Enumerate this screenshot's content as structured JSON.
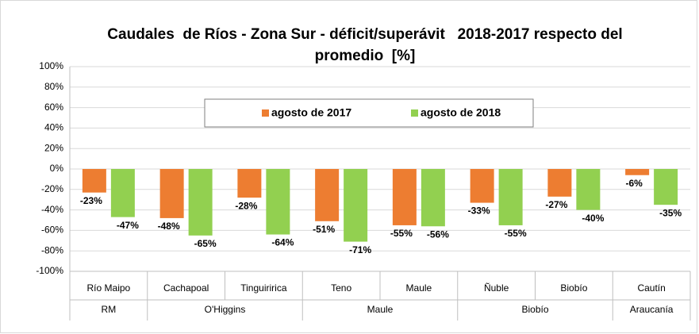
{
  "chart_data": {
    "type": "bar",
    "title": "Caudales  de Ríos - Zona Sur - déficit/superávit   2018-2017 respecto del promedio  [%]",
    "categories": [
      "Río Maipo",
      "Cachapoal",
      "Tinguiririca",
      "Teno",
      "Maule",
      "Ñuble",
      "Biobío",
      "Cautín"
    ],
    "groups": [
      {
        "label": "RM",
        "span": 1
      },
      {
        "label": "O'Higgins",
        "span": 2
      },
      {
        "label": "Maule",
        "span": 2
      },
      {
        "label": "Biobío",
        "span": 2
      },
      {
        "label": "Araucanía",
        "span": 1
      }
    ],
    "series": [
      {
        "name": "agosto de 2017",
        "color": "#ed7d31",
        "values": [
          -23,
          -48,
          -28,
          -51,
          -55,
          -33,
          -27,
          -6
        ],
        "value_labels": [
          "-23%",
          "-48%",
          "-28%",
          "-51%",
          "-55%",
          "-33%",
          "-27%",
          "-6%"
        ]
      },
      {
        "name": "agosto de 2018",
        "color": "#92d050",
        "values": [
          -47,
          -65,
          -64,
          -71,
          -56,
          -55,
          -40,
          -35
        ],
        "value_labels": [
          "-47%",
          "-65%",
          "-64%",
          "-71%",
          "-56%",
          "-55%",
          "-40%",
          "-35%"
        ]
      }
    ],
    "ylim": [
      -100,
      100
    ],
    "yticks": [
      {
        "value": -100,
        "label": "-100%"
      },
      {
        "value": -80,
        "label": "-80%"
      },
      {
        "value": -60,
        "label": "-60%"
      },
      {
        "value": -40,
        "label": "-40%"
      },
      {
        "value": -20,
        "label": "-20%"
      },
      {
        "value": 0,
        "label": "0%"
      },
      {
        "value": 20,
        "label": "20%"
      },
      {
        "value": 40,
        "label": "40%"
      },
      {
        "value": 60,
        "label": "60%"
      },
      {
        "value": 80,
        "label": "80%"
      },
      {
        "value": 100,
        "label": "100%"
      }
    ],
    "grid": true,
    "legend": "top"
  }
}
